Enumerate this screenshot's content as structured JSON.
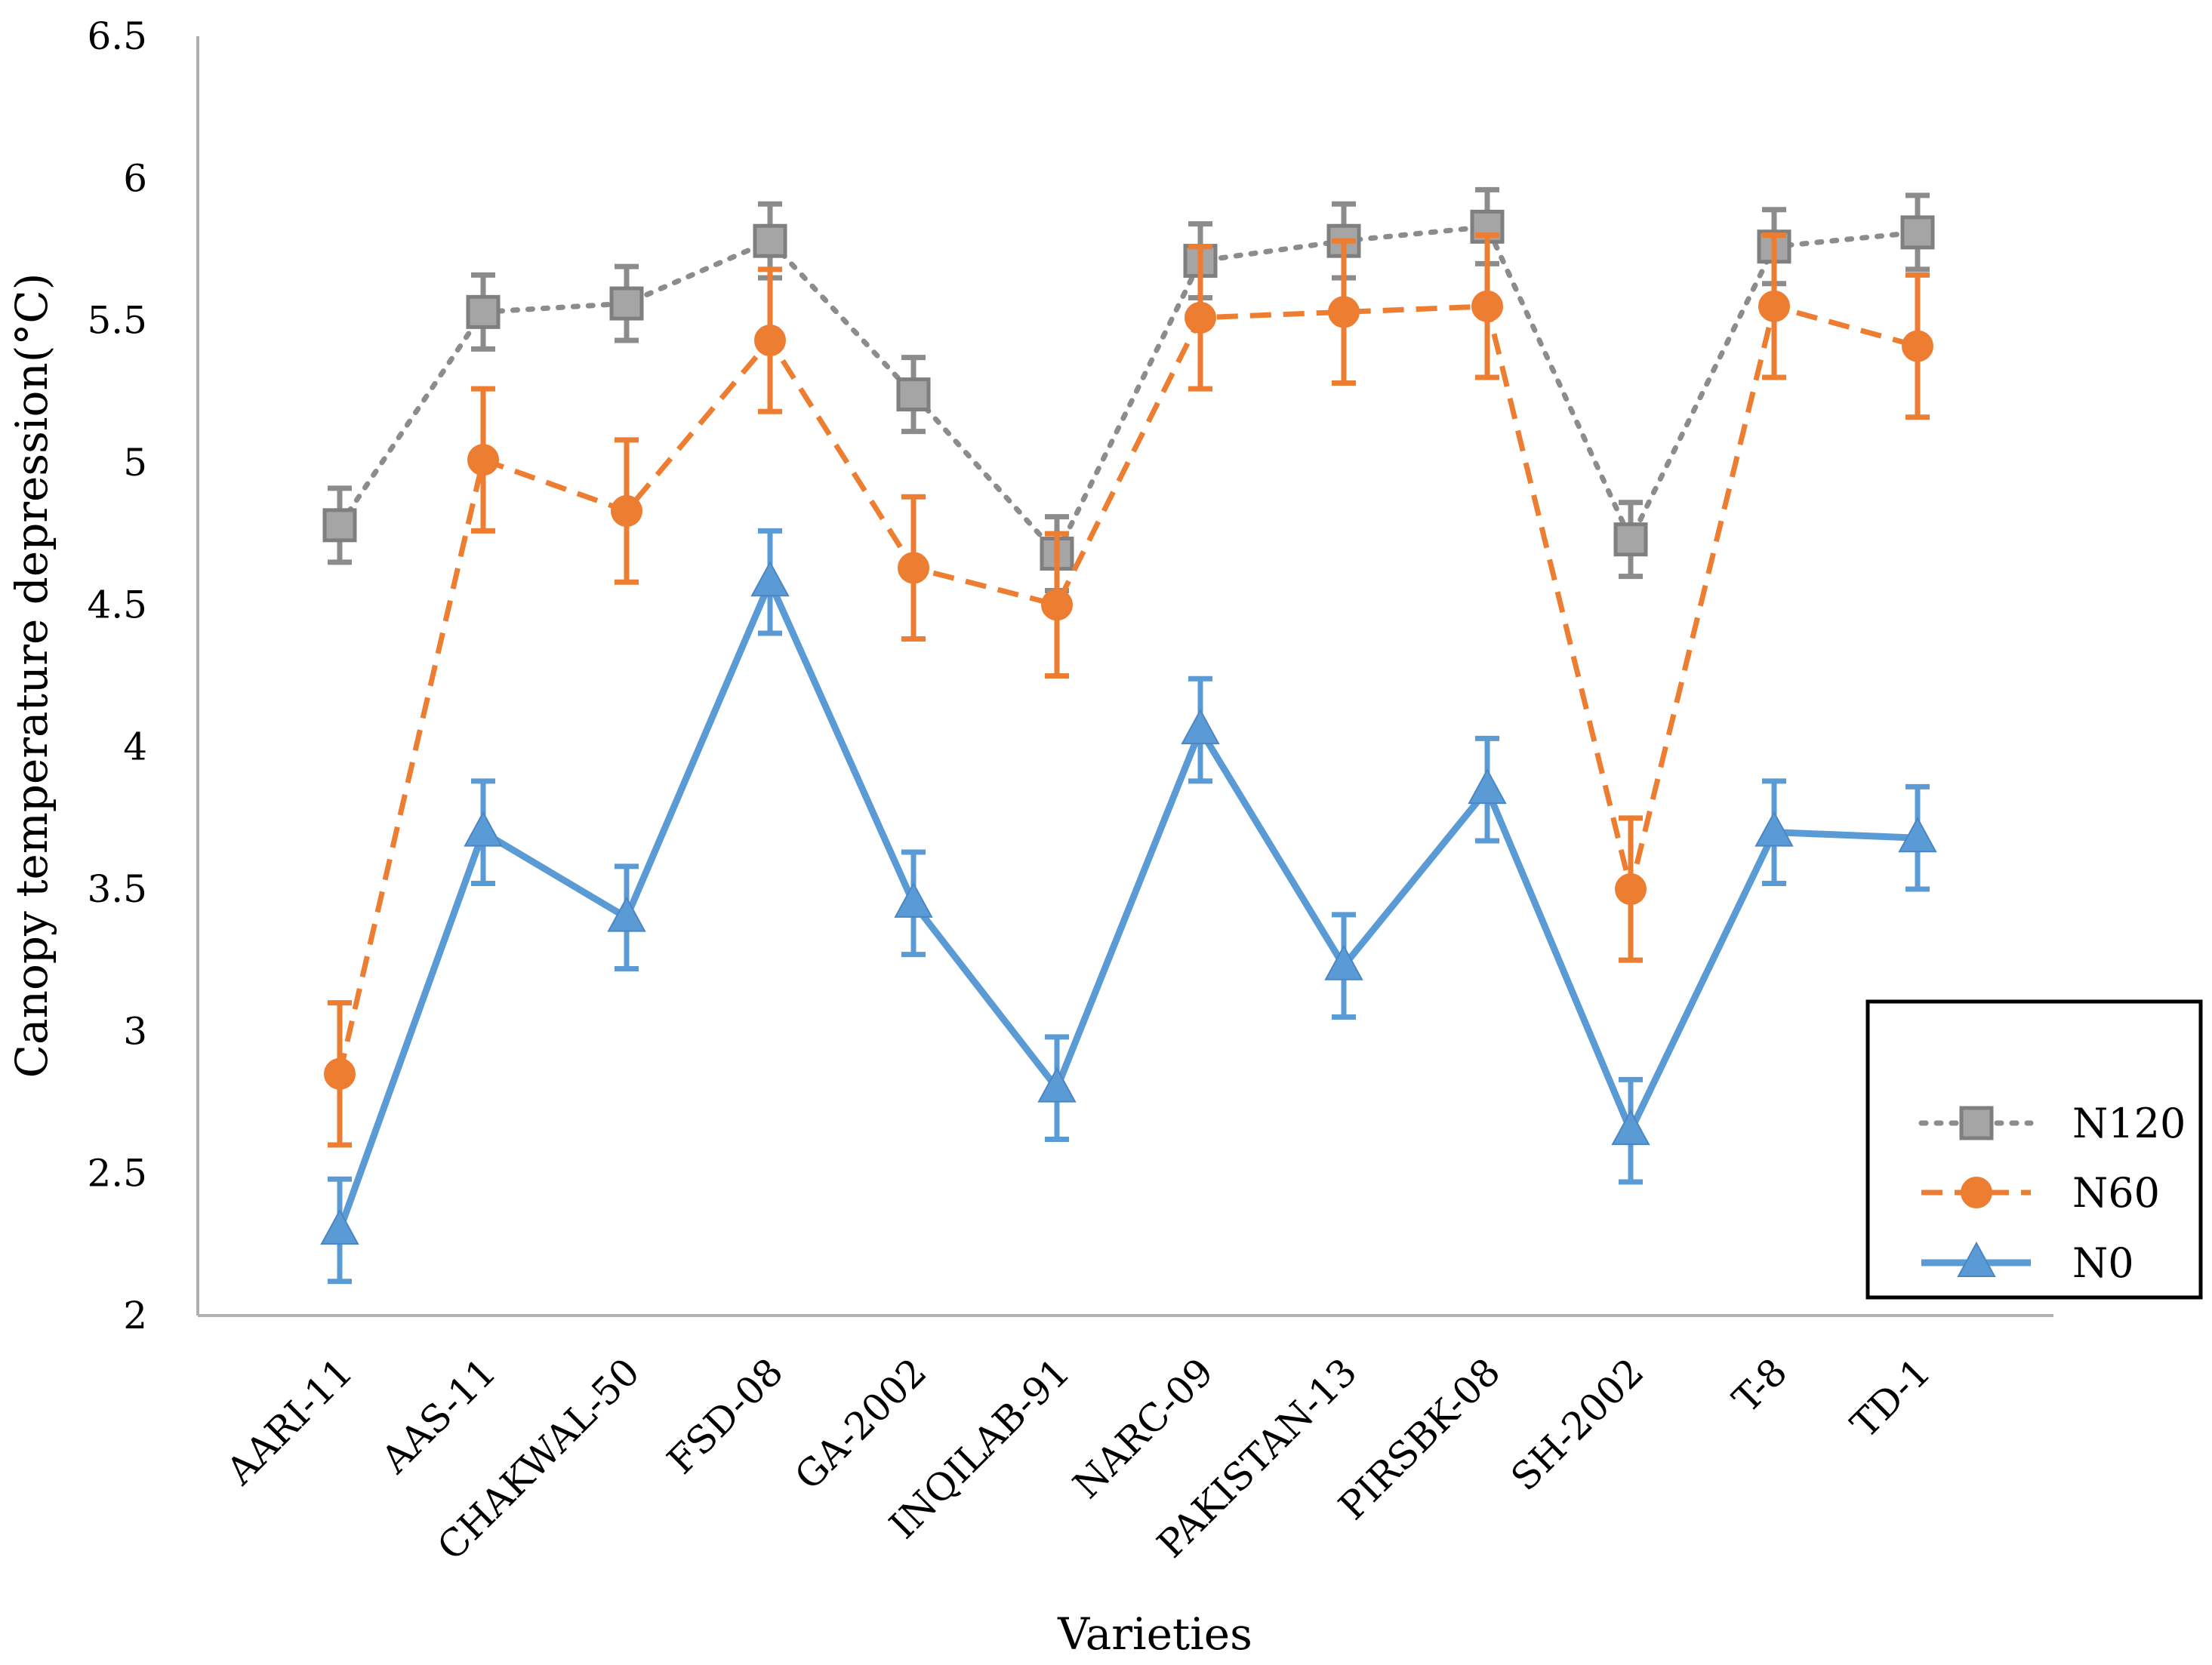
{
  "chart_data": {
    "type": "line",
    "title": "",
    "xlabel": "Varieties",
    "ylabel": "Canopy temperature depression(°C)",
    "ylim": [
      2,
      6.5
    ],
    "yticks": [
      "2",
      "2.5",
      "3",
      "3.5",
      "4",
      "4.5",
      "5",
      "5.5",
      "6",
      "6.5"
    ],
    "categories": [
      "AARI-11",
      "AAS-11",
      "CHAKWAL-50",
      "FSD-08",
      "GA-2002",
      "INQILAB-91",
      "NARC-09",
      "PAKISTAN-13",
      "PIRSBK-08",
      "SH-2002",
      "T-8",
      "TD-1"
    ],
    "grid": false,
    "legend_position": "bottom-right",
    "series": [
      {
        "name": "N120",
        "color": "#8c8c8c",
        "marker": "square",
        "line_style": "dotted",
        "values": [
          4.78,
          5.53,
          5.56,
          5.78,
          5.24,
          4.68,
          5.71,
          5.78,
          5.83,
          4.73,
          5.76,
          5.81
        ],
        "errors": [
          0.13,
          0.13,
          0.13,
          0.13,
          0.13,
          0.13,
          0.13,
          0.13,
          0.13,
          0.13,
          0.13,
          0.13
        ]
      },
      {
        "name": "N60",
        "color": "#ed7d31",
        "marker": "circle",
        "line_style": "dashed",
        "values": [
          2.85,
          5.01,
          4.83,
          5.43,
          4.63,
          4.5,
          5.51,
          5.53,
          5.55,
          3.5,
          5.55,
          5.41
        ],
        "errors": [
          0.25,
          0.25,
          0.25,
          0.25,
          0.25,
          0.25,
          0.25,
          0.25,
          0.25,
          0.25,
          0.25,
          0.25
        ]
      },
      {
        "name": "N0",
        "color": "#5b9bd5",
        "marker": "triangle",
        "line_style": "solid",
        "values": [
          2.3,
          3.7,
          3.4,
          4.58,
          3.45,
          2.8,
          4.06,
          3.23,
          3.85,
          2.65,
          3.7,
          3.68
        ],
        "errors": [
          0.18,
          0.18,
          0.18,
          0.18,
          0.18,
          0.18,
          0.18,
          0.18,
          0.18,
          0.18,
          0.18,
          0.18
        ]
      }
    ]
  }
}
